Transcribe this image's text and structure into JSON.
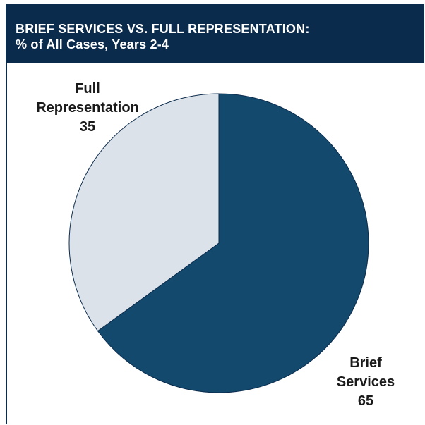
{
  "header": {
    "title": "BRIEF SERVICES VS. FULL REPRESENTATION:",
    "subtitle": "% of All Cases, Years 2-4"
  },
  "colors": {
    "header_bg": "#0b2b4d",
    "brief_services": "#12496c",
    "full_representation": "#dbe2ea"
  },
  "chart_data": {
    "type": "pie",
    "title": "BRIEF SERVICES VS. FULL REPRESENTATION:",
    "subtitle": "% of All Cases, Years 2-4",
    "unit": "%",
    "legend": "none",
    "slices": [
      {
        "label_lines": [
          "Brief",
          "Services"
        ],
        "value": 65
      },
      {
        "label_lines": [
          "Full",
          "Representation"
        ],
        "value": 35
      }
    ]
  }
}
